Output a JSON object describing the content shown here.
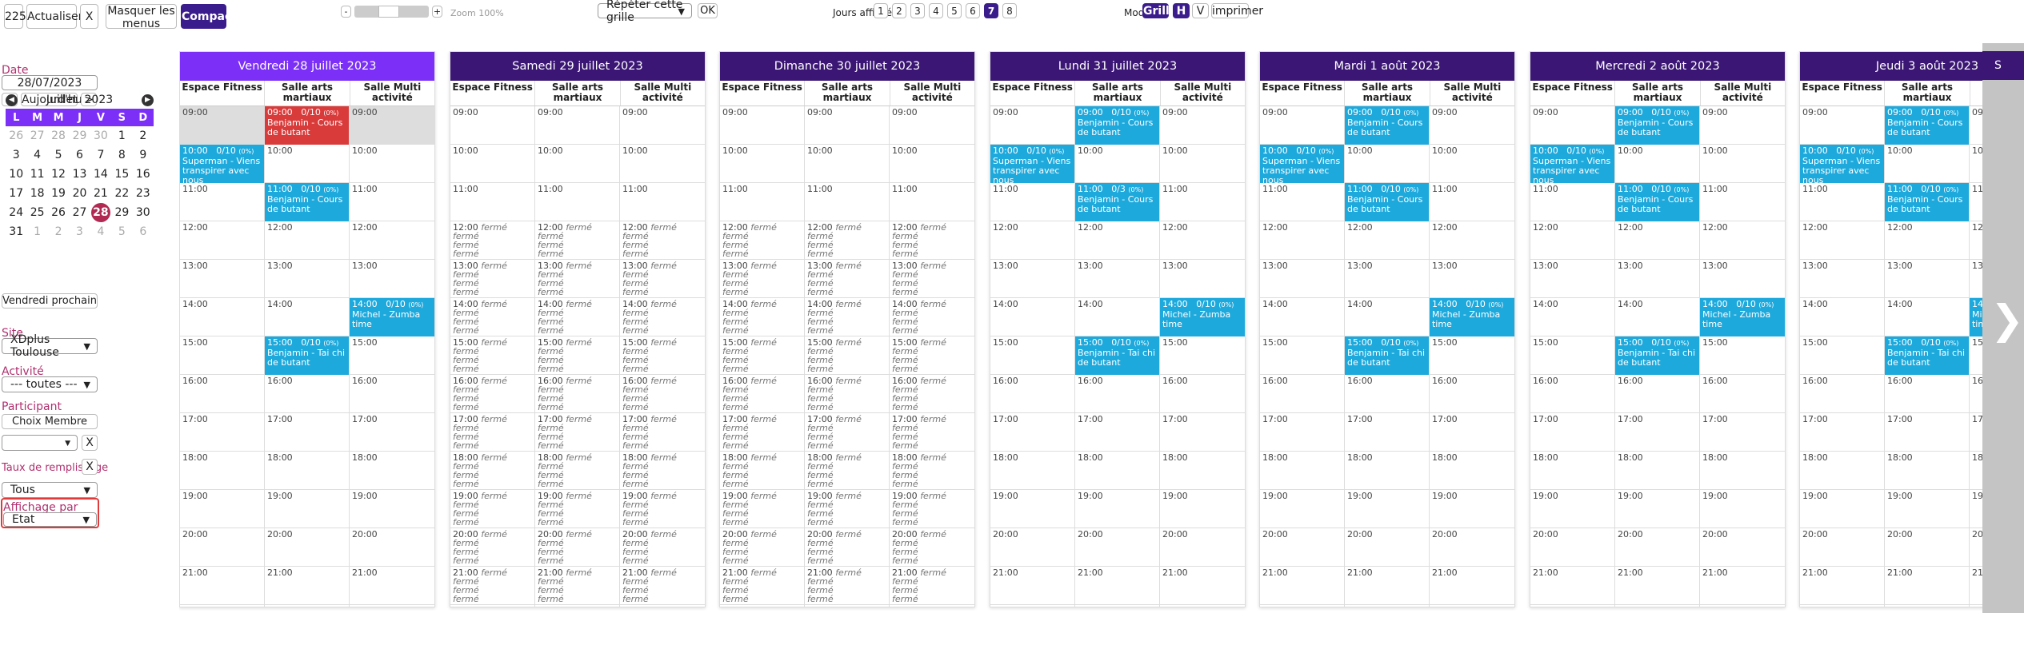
{
  "toolbar": {
    "count": "225",
    "refresh": "Actualiser",
    "clear": "X",
    "hide_menus": "Masquer les menus",
    "compact": "Compacter",
    "zoom_minus": "-",
    "zoom_plus": "+",
    "zoom_label": "Zoom 100%",
    "repeat_select": "Répéter cette grille",
    "ok": "OK",
    "days_label": "Jours affichés",
    "days": [
      "1",
      "2",
      "3",
      "4",
      "5",
      "6",
      "7",
      "8"
    ],
    "days_selected": "7",
    "mode_label": "Mode",
    "mode_grid": "Grille",
    "mode_h": "H",
    "mode_v": "V",
    "print": "imprimer"
  },
  "sidebar": {
    "date_label": "Date",
    "date_value": "28/07/2023",
    "prev": "<",
    "today": "Aujourd'hui",
    "next": ">",
    "next_friday": "Vendredi prochain",
    "site_label": "Site",
    "site_value": "XDplus Toulouse",
    "activity_label": "Activité",
    "activity_value": "--- toutes ---",
    "participant_label": "Participant",
    "choose_member": "Choix Membre",
    "participant_clear": "X",
    "fill_label": "Taux de remplissage",
    "fill_clear": "X",
    "fill_value": "Tous",
    "display_label": "Affichage par",
    "display_value": "Etat"
  },
  "minical": {
    "month": "Juillet",
    "year": "2023",
    "weekdays": [
      "L",
      "M",
      "M",
      "J",
      "V",
      "S",
      "D"
    ],
    "weeks": [
      [
        "26",
        "27",
        "28",
        "29",
        "30",
        "1",
        "2"
      ],
      [
        "3",
        "4",
        "5",
        "6",
        "7",
        "8",
        "9"
      ],
      [
        "10",
        "11",
        "12",
        "13",
        "14",
        "15",
        "16"
      ],
      [
        "17",
        "18",
        "19",
        "20",
        "21",
        "22",
        "23"
      ],
      [
        "24",
        "25",
        "26",
        "27",
        "28",
        "29",
        "30"
      ],
      [
        "31",
        "1",
        "2",
        "3",
        "4",
        "5",
        "6"
      ]
    ],
    "selected": "28"
  },
  "rooms": [
    "Espace Fitness",
    "Salle arts martiaux",
    "Salle Multi activité"
  ],
  "hours": [
    "09:00",
    "10:00",
    "11:00",
    "12:00",
    "13:00",
    "14:00",
    "15:00",
    "16:00",
    "17:00",
    "18:00",
    "19:00",
    "20:00",
    "21:00"
  ],
  "closed_label": "fermé",
  "days": [
    {
      "title": "Vendredi 28 juillet 2023",
      "active": true,
      "closed": false
    },
    {
      "title": "Samedi 29 juillet 2023",
      "active": false,
      "closed": true
    },
    {
      "title": "Dimanche 30 juillet 2023",
      "active": false,
      "closed": true
    },
    {
      "title": "Lundi 31 juillet 2023",
      "active": false,
      "closed": false
    },
    {
      "title": "Mardi 1 août 2023",
      "active": false,
      "closed": false
    },
    {
      "title": "Mercredi 2 août 2023",
      "active": false,
      "closed": false
    },
    {
      "title": "Jeudi 3 août 2023",
      "active": false,
      "closed": false
    }
  ],
  "events": [
    {
      "room": 1,
      "hour": 0,
      "time": "09:00",
      "cap": "0/10",
      "pct": "(0%)",
      "title": "Benjamin - Cours de butant"
    },
    {
      "room": 0,
      "hour": 1,
      "time": "10:00",
      "cap": "0/10",
      "pct": "(0%)",
      "title": "Superman - Viens transpirer avec nous"
    },
    {
      "room": 1,
      "hour": 2,
      "time": "11:00",
      "cap": "0/10",
      "pct": "(0%)",
      "title": "Benjamin - Cours de butant"
    },
    {
      "room": 2,
      "hour": 5,
      "time": "14:00",
      "cap": "0/10",
      "pct": "(0%)",
      "title": "Michel - Zumba time"
    },
    {
      "room": 1,
      "hour": 6,
      "time": "15:00",
      "cap": "0/10",
      "pct": "(0%)",
      "title": "Benjamin - Tai chi de butant"
    }
  ],
  "day3_override": {
    "hour": 2,
    "cap": "0/3"
  },
  "last_day_letter": "S",
  "scroll_arrow": "❯"
}
